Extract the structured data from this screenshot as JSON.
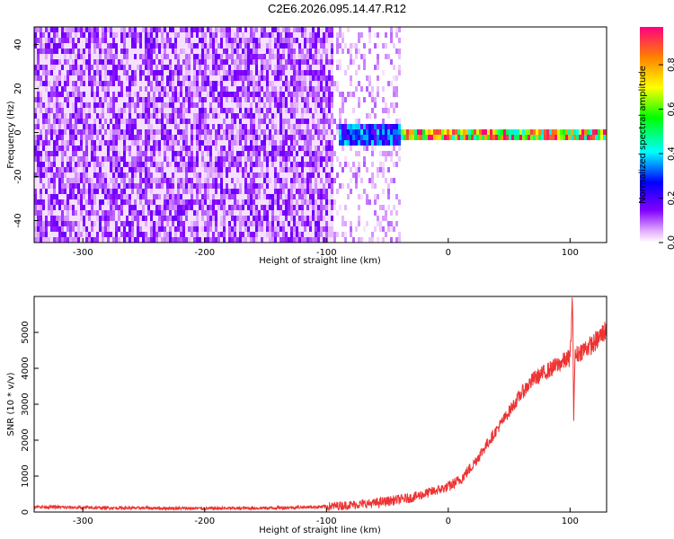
{
  "title": "C2E6.2026.095.14.47.R12",
  "chart_data": [
    {
      "type": "heatmap",
      "xlabel": "Height of straight line (km)",
      "ylabel": "Frequency (Hz)",
      "xlim": [
        -340,
        130
      ],
      "ylim": [
        -50,
        48
      ],
      "xticks": [
        -300,
        -200,
        -100,
        0,
        100
      ],
      "yticks": [
        -40,
        -20,
        0,
        20,
        40
      ],
      "colorbar": {
        "label": "Normalized spectral amplitude",
        "range": [
          0,
          0.97
        ],
        "ticks": [
          0,
          0.2,
          0.4,
          0.6,
          0.8
        ]
      },
      "features": [
        {
          "x_range": [
            -340,
            -95
          ],
          "freq_range": [
            -50,
            48
          ],
          "amplitude": 0.15
        },
        {
          "x_range": [
            -95,
            -40
          ],
          "freq_range": [
            -50,
            48
          ],
          "amplitude": 0.05
        },
        {
          "x_range": [
            -90,
            -40
          ],
          "freq_range": [
            -5,
            5
          ],
          "amplitude": 0.35
        },
        {
          "x_range": [
            -40,
            130
          ],
          "freq_range": [
            -2,
            3
          ],
          "amplitude": 0.9
        }
      ]
    },
    {
      "type": "line",
      "xlabel": "Height of straight line (km)",
      "ylabel": "SNR (10 * v/v)",
      "xlim": [
        -340,
        130
      ],
      "ylim": [
        0,
        6000
      ],
      "xticks": [
        -300,
        -200,
        -100,
        0,
        100
      ],
      "yticks": [
        0,
        1000,
        2000,
        3000,
        4000,
        5000
      ],
      "color": "#ee3333",
      "series": [
        {
          "x": [
            -340,
            -300,
            -250,
            -200,
            -150,
            -100,
            -80,
            -60,
            -50,
            -40,
            -30,
            -20,
            -10,
            0,
            10,
            20,
            30,
            40,
            50,
            60,
            70,
            80,
            90,
            95,
            100,
            102,
            103,
            104,
            106,
            110,
            120,
            130
          ],
          "values": [
            150,
            120,
            110,
            100,
            110,
            150,
            200,
            250,
            300,
            350,
            400,
            500,
            600,
            700,
            900,
            1300,
            1800,
            2300,
            2800,
            3300,
            3700,
            3900,
            4100,
            4200,
            4300,
            5900,
            2700,
            4300,
            4400,
            4500,
            4700,
            5100
          ]
        }
      ]
    }
  ]
}
